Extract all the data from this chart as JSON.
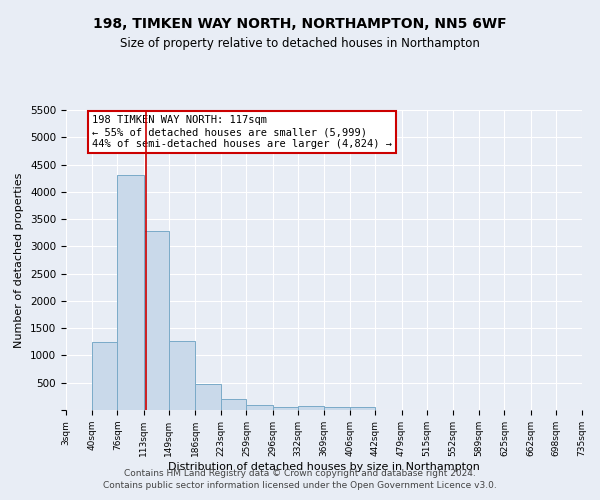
{
  "title": "198, TIMKEN WAY NORTH, NORTHAMPTON, NN5 6WF",
  "subtitle": "Size of property relative to detached houses in Northampton",
  "xlabel": "Distribution of detached houses by size in Northampton",
  "ylabel": "Number of detached properties",
  "footer_line1": "Contains HM Land Registry data © Crown copyright and database right 2024.",
  "footer_line2": "Contains public sector information licensed under the Open Government Licence v3.0.",
  "bar_edges": [
    3,
    40,
    76,
    113,
    149,
    186,
    223,
    259,
    296,
    332,
    369,
    406,
    442,
    479,
    515,
    552,
    589,
    625,
    662,
    698,
    735
  ],
  "bar_heights": [
    0,
    1250,
    4300,
    3280,
    1270,
    480,
    210,
    90,
    50,
    80,
    60,
    50,
    0,
    0,
    0,
    0,
    0,
    0,
    0,
    0
  ],
  "bar_color": "#c9d9ea",
  "bar_edge_color": "#7aaac8",
  "property_line_x": 117,
  "property_line_color": "#cc0000",
  "annotation_text": "198 TIMKEN WAY NORTH: 117sqm\n← 55% of detached houses are smaller (5,999)\n44% of semi-detached houses are larger (4,824) →",
  "annotation_box_color": "#ffffff",
  "annotation_box_edge_color": "#cc0000",
  "ylim": [
    0,
    5500
  ],
  "yticks": [
    0,
    500,
    1000,
    1500,
    2000,
    2500,
    3000,
    3500,
    4000,
    4500,
    5000,
    5500
  ],
  "xlim_min": 3,
  "xlim_max": 735,
  "bg_color": "#e8edf5",
  "plot_bg_color": "#e8edf5",
  "grid_color": "#ffffff",
  "tick_labels": [
    "3sqm",
    "40sqm",
    "76sqm",
    "113sqm",
    "149sqm",
    "186sqm",
    "223sqm",
    "259sqm",
    "296sqm",
    "332sqm",
    "369sqm",
    "406sqm",
    "442sqm",
    "479sqm",
    "515sqm",
    "552sqm",
    "589sqm",
    "625sqm",
    "662sqm",
    "698sqm",
    "735sqm"
  ]
}
